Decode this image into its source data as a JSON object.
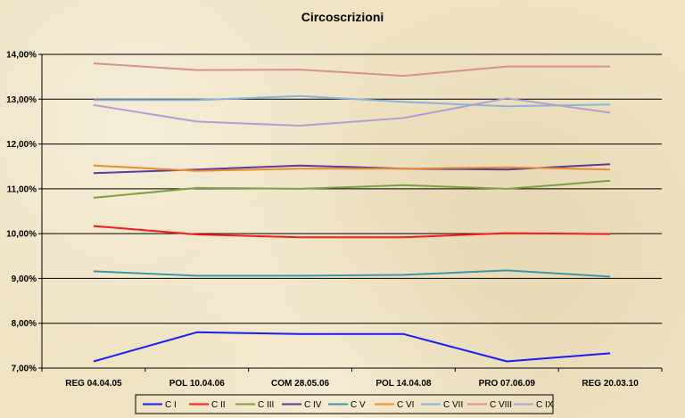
{
  "chart_data": {
    "type": "line",
    "title": "Circoscrizioni",
    "categories": [
      "REG 04.04.05",
      "POL 10.04.06",
      "COM 28.05.06",
      "POL 14.04.08",
      "PRO 07.06.09",
      "REG 20.03.10"
    ],
    "y_ticks": [
      "7,00%",
      "8,00%",
      "9,00%",
      "10,00%",
      "11,00%",
      "12,00%",
      "13,00%",
      "14,00%"
    ],
    "ylim": [
      7,
      14
    ],
    "grid": true,
    "legend_position": "bottom",
    "series": [
      {
        "name": "C I",
        "color": "#1a1aff",
        "values": [
          7.15,
          7.8,
          7.76,
          7.76,
          7.15,
          7.33
        ]
      },
      {
        "name": "C II",
        "color": "#ff1a1a",
        "values": [
          10.17,
          9.98,
          9.92,
          9.92,
          10.01,
          9.99
        ]
      },
      {
        "name": "C III",
        "color": "#7aa040",
        "values": [
          10.8,
          11.02,
          11.0,
          11.08,
          11.0,
          11.18
        ]
      },
      {
        "name": "C IV",
        "color": "#5a3a9a",
        "values": [
          11.35,
          11.43,
          11.52,
          11.45,
          11.43,
          11.55
        ]
      },
      {
        "name": "C V",
        "color": "#3a97a8",
        "values": [
          9.16,
          9.06,
          9.06,
          9.08,
          9.18,
          9.04
        ]
      },
      {
        "name": "C VI",
        "color": "#f08a30",
        "values": [
          11.52,
          11.4,
          11.45,
          11.45,
          11.48,
          11.43
        ]
      },
      {
        "name": "C VII",
        "color": "#8fb0d8",
        "values": [
          12.98,
          12.98,
          13.07,
          12.94,
          12.84,
          12.88
        ]
      },
      {
        "name": "C VIII",
        "color": "#d99090",
        "values": [
          13.8,
          13.65,
          13.66,
          13.52,
          13.73,
          13.73
        ]
      },
      {
        "name": "C IX",
        "color": "#b0a0d0",
        "values": [
          12.87,
          12.5,
          12.41,
          12.58,
          13.02,
          12.7
        ]
      }
    ]
  }
}
